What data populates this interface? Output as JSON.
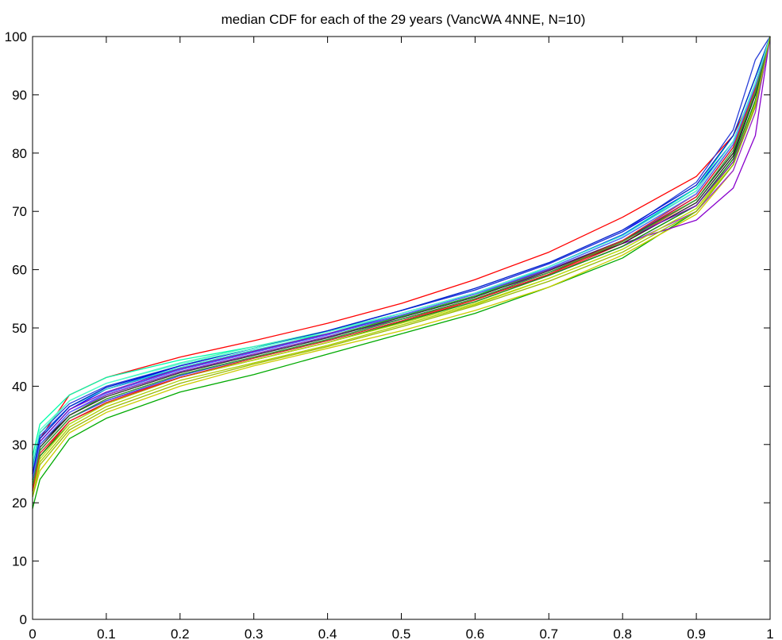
{
  "chart_data": {
    "type": "line",
    "title": "median CDF for each of the 29 years (VancWA 4NNE, N=10)",
    "xlabel": "",
    "ylabel": "",
    "xlim": [
      0,
      1
    ],
    "ylim": [
      0,
      100
    ],
    "xticks": [
      "0",
      "0.1",
      "0.2",
      "0.3",
      "0.4",
      "0.5",
      "0.6",
      "0.7",
      "0.8",
      "0.9",
      "1"
    ],
    "yticks": [
      "0",
      "10",
      "20",
      "30",
      "40",
      "50",
      "60",
      "70",
      "80",
      "90",
      "100"
    ],
    "grid": false,
    "x": [
      0,
      0.01,
      0.05,
      0.1,
      0.2,
      0.3,
      0.4,
      0.5,
      0.6,
      0.7,
      0.8,
      0.9,
      0.95,
      0.98,
      1
    ],
    "series": [
      {
        "color": "#ff0000",
        "values": [
          22,
          31,
          38.5,
          41.5,
          45,
          47.8,
          50.8,
          54.2,
          58.3,
          63,
          69,
          76,
          83,
          91,
          100
        ]
      },
      {
        "color": "#00aa00",
        "values": [
          19,
          24,
          31,
          34.5,
          39,
          42,
          45.5,
          49,
          52.5,
          57,
          62,
          70,
          78,
          88,
          100
        ]
      },
      {
        "color": "#0000ff",
        "values": [
          25,
          30.5,
          36,
          39.5,
          43.5,
          46.5,
          49.5,
          53,
          56.5,
          61,
          66.5,
          74,
          82,
          92,
          100
        ]
      },
      {
        "color": "#00ffaa",
        "values": [
          28,
          33.5,
          38.5,
          41.5,
          44.5,
          46.8,
          49,
          52,
          55.5,
          60.5,
          66,
          74,
          83,
          93,
          100
        ]
      },
      {
        "color": "#cccc00",
        "values": [
          21,
          25.5,
          32,
          35.5,
          40,
          43.5,
          46.5,
          49.5,
          53,
          57,
          62.5,
          69.5,
          77,
          87,
          100
        ]
      },
      {
        "color": "#8800cc",
        "values": [
          26,
          31,
          36.5,
          39.5,
          43,
          46,
          49,
          52,
          55.5,
          59.5,
          64.5,
          68.5,
          74,
          83,
          100
        ]
      },
      {
        "color": "#000000",
        "values": [
          25,
          30,
          35,
          38.5,
          42.5,
          45.5,
          48.5,
          51.5,
          55,
          59,
          64,
          71,
          79,
          89,
          100
        ]
      },
      {
        "color": "#2a3fd9",
        "values": [
          26,
          32,
          37,
          40,
          43.5,
          46.5,
          49.5,
          53,
          56.5,
          61,
          66.5,
          75,
          84,
          96,
          100
        ]
      },
      {
        "color": "#ff3030",
        "values": [
          22,
          29,
          34.5,
          37.5,
          41.5,
          44.5,
          47.5,
          51,
          54.5,
          59,
          64.5,
          72,
          80,
          90,
          100
        ]
      },
      {
        "color": "#22bb22",
        "values": [
          24,
          29.5,
          35,
          38.5,
          42.5,
          45.5,
          48.5,
          52,
          55.5,
          60,
          65,
          72,
          80,
          90,
          100
        ]
      },
      {
        "color": "#3344ff",
        "values": [
          24,
          29,
          34.5,
          37.5,
          41.8,
          45,
          48,
          51.5,
          55,
          59.5,
          65,
          72.5,
          81,
          91,
          100
        ]
      },
      {
        "color": "#44eebb",
        "values": [
          27,
          32,
          37.5,
          40.5,
          44,
          46.8,
          49.5,
          52.5,
          56,
          60.5,
          66,
          73.5,
          82,
          92,
          100
        ]
      },
      {
        "color": "#aacc00",
        "values": [
          22,
          27,
          33,
          36.5,
          41,
          44,
          47,
          50.5,
          54,
          58.5,
          63.5,
          70.5,
          78,
          88,
          100
        ]
      },
      {
        "color": "#9922dd",
        "values": [
          25,
          30,
          35.5,
          38.5,
          42.5,
          45.5,
          48.5,
          51.5,
          55,
          59,
          64,
          70,
          77,
          87,
          100
        ]
      },
      {
        "color": "#222222",
        "values": [
          24,
          29,
          34.5,
          37.8,
          42,
          45,
          48,
          51.5,
          55,
          59.5,
          64.5,
          71.5,
          79.5,
          90,
          100
        ]
      },
      {
        "color": "#1155ee",
        "values": [
          26,
          31.5,
          36.5,
          39.5,
          43,
          46,
          49,
          52.5,
          56,
          60.5,
          66,
          73.5,
          82,
          92,
          100
        ]
      },
      {
        "color": "#ee1111",
        "values": [
          23,
          28,
          34,
          37,
          41.5,
          44.5,
          47.5,
          51,
          54.8,
          59.2,
          64.8,
          72.5,
          81,
          91,
          100
        ]
      },
      {
        "color": "#119911",
        "values": [
          23,
          28,
          33.5,
          37,
          41.5,
          44.5,
          47.5,
          51,
          54.5,
          59,
          64,
          71,
          79,
          89,
          100
        ]
      },
      {
        "color": "#4455ff",
        "values": [
          25,
          30,
          35.5,
          38.8,
          42.8,
          45.8,
          48.8,
          52.2,
          55.8,
          60.2,
          65.5,
          73,
          81.5,
          91.5,
          100
        ]
      },
      {
        "color": "#33ddcc",
        "values": [
          26,
          31,
          36.5,
          39.5,
          43.2,
          46.2,
          49,
          52.2,
          55.8,
          60.2,
          65.5,
          73,
          81.5,
          91.5,
          100
        ]
      },
      {
        "color": "#bbdd11",
        "values": [
          22,
          27.5,
          33.5,
          37,
          41.5,
          44.5,
          47.5,
          50.8,
          54.2,
          58.5,
          63.5,
          70.5,
          78.5,
          88.5,
          100
        ]
      },
      {
        "color": "#7711bb",
        "values": [
          25,
          30.5,
          36,
          39,
          43,
          46,
          49,
          52.2,
          55.8,
          60,
          65,
          71,
          78.5,
          88,
          100
        ]
      },
      {
        "color": "#333333",
        "values": [
          24,
          29.5,
          35,
          38.2,
          42.3,
          45.3,
          48.3,
          51.8,
          55.3,
          59.8,
          65,
          72,
          80,
          90,
          100
        ]
      },
      {
        "color": "#0022cc",
        "values": [
          25,
          31,
          36.5,
          39.8,
          43.5,
          46.5,
          49.5,
          53,
          56.8,
          61.2,
          66.8,
          74.5,
          83,
          93,
          100
        ]
      },
      {
        "color": "#dd2222",
        "values": [
          22,
          28.5,
          34,
          37.2,
          41.5,
          44.8,
          47.8,
          51.2,
          55,
          59.5,
          65,
          73,
          81.5,
          91.5,
          100
        ]
      },
      {
        "color": "#33aa33",
        "values": [
          23,
          29,
          34.5,
          37.8,
          42,
          45,
          48,
          51.5,
          55,
          59.5,
          64.8,
          72,
          80.5,
          90.5,
          100
        ]
      },
      {
        "color": "#5566ff",
        "values": [
          24,
          30,
          35.5,
          38.8,
          42.8,
          45.8,
          48.8,
          52.2,
          55.8,
          60.2,
          65.5,
          73,
          81.5,
          91.5,
          100
        ]
      },
      {
        "color": "#55ffcc",
        "values": [
          27,
          32.5,
          37.5,
          40.5,
          43.8,
          46.5,
          49.3,
          52.5,
          56,
          60.5,
          65.8,
          73.5,
          82,
          92,
          100
        ]
      },
      {
        "color": "#99bb00",
        "values": [
          21,
          26.5,
          32.5,
          36,
          40.5,
          43.8,
          46.8,
          50.2,
          53.8,
          58,
          63,
          70,
          78,
          88,
          100
        ]
      }
    ]
  }
}
